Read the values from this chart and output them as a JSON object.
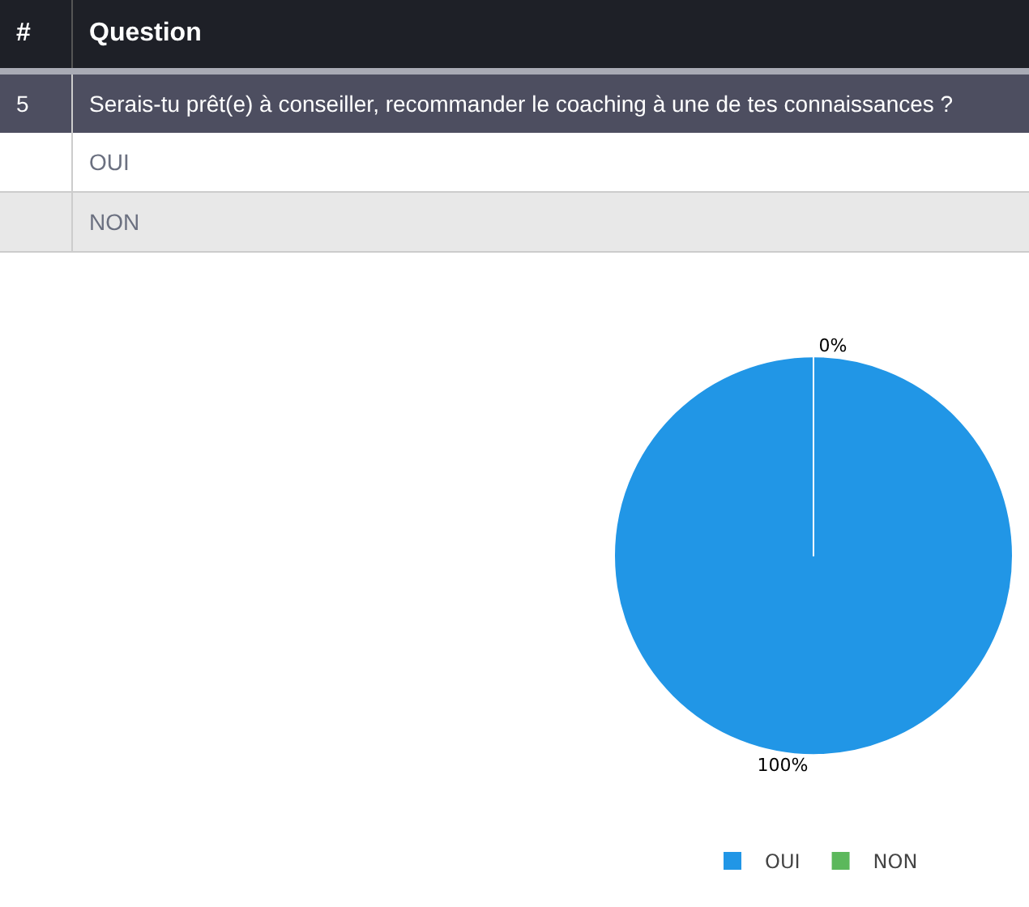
{
  "chart_data": {
    "type": "pie",
    "title": "Serais-tu prêt(e) à conseiller, recommander le coaching à une de tes connaissances ?",
    "annotations": [
      "#",
      "Question",
      "5"
    ],
    "categories": [
      "OUI",
      "NON"
    ],
    "values": [
      100,
      0
    ],
    "colors": [
      "#2196e6",
      "#5cb85c"
    ],
    "value_labels": [
      "100%",
      "0%"
    ],
    "legend": "bottom"
  }
}
